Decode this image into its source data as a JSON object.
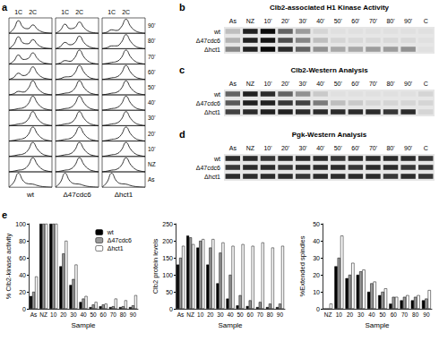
{
  "panel_labels": [
    "a",
    "b",
    "c",
    "d",
    "e"
  ],
  "facs": {
    "peak_labels": [
      "1C",
      "2C"
    ],
    "rows": [
      "90'",
      "80'",
      "70'",
      "60'",
      "50'",
      "40'",
      "30'",
      "20'",
      "10'",
      "NZ",
      "As"
    ],
    "ylim": [
      0,
      1.1
    ],
    "tick_labels": false,
    "columns": [
      {
        "name": "wt",
        "histograms": [
          [
            0,
            0.32,
            0.9,
            0.42,
            0.33,
            0.6,
            0.28,
            0.1,
            0.03,
            0
          ],
          [
            0,
            0.3,
            0.85,
            0.4,
            0.35,
            0.65,
            0.3,
            0.1,
            0.03,
            0
          ],
          [
            0,
            0.22,
            0.65,
            0.33,
            0.4,
            0.8,
            0.38,
            0.13,
            0.04,
            0
          ],
          [
            0,
            0.15,
            0.45,
            0.28,
            0.42,
            0.9,
            0.42,
            0.15,
            0.05,
            0
          ],
          [
            0,
            0.08,
            0.25,
            0.2,
            0.45,
            1,
            0.48,
            0.17,
            0.05,
            0
          ],
          [
            0,
            0.05,
            0.12,
            0.18,
            0.45,
            1,
            0.5,
            0.18,
            0.06,
            0
          ],
          [
            0,
            0.05,
            0.12,
            0.18,
            0.45,
            1,
            0.5,
            0.18,
            0.06,
            0
          ],
          [
            0,
            0.05,
            0.12,
            0.18,
            0.45,
            1,
            0.5,
            0.18,
            0.06,
            0
          ],
          [
            0,
            0.05,
            0.12,
            0.18,
            0.45,
            1,
            0.5,
            0.18,
            0.06,
            0
          ],
          [
            0,
            0.05,
            0.12,
            0.18,
            0.45,
            1,
            0.5,
            0.18,
            0.06,
            0
          ],
          [
            0,
            0.35,
            1,
            0.45,
            0.25,
            0.22,
            0.12,
            0.05,
            0.02,
            0
          ]
        ]
      },
      {
        "name": "Δ47cdc6",
        "histograms": [
          [
            0,
            0.22,
            0.65,
            0.33,
            0.4,
            0.8,
            0.38,
            0.13,
            0.04,
            0
          ],
          [
            0,
            0.15,
            0.45,
            0.28,
            0.42,
            0.9,
            0.42,
            0.15,
            0.05,
            0
          ],
          [
            0,
            0.08,
            0.25,
            0.2,
            0.45,
            1,
            0.48,
            0.17,
            0.05,
            0
          ],
          [
            0,
            0.06,
            0.18,
            0.2,
            0.45,
            1,
            0.5,
            0.17,
            0.05,
            0
          ],
          [
            0,
            0.05,
            0.12,
            0.18,
            0.45,
            1,
            0.5,
            0.18,
            0.06,
            0
          ],
          [
            0,
            0.05,
            0.12,
            0.18,
            0.45,
            1,
            0.5,
            0.18,
            0.06,
            0
          ],
          [
            0,
            0.05,
            0.12,
            0.18,
            0.45,
            1,
            0.5,
            0.18,
            0.06,
            0
          ],
          [
            0,
            0.05,
            0.12,
            0.18,
            0.45,
            1,
            0.5,
            0.18,
            0.06,
            0
          ],
          [
            0,
            0.05,
            0.12,
            0.18,
            0.45,
            1,
            0.5,
            0.18,
            0.06,
            0
          ],
          [
            0,
            0.05,
            0.12,
            0.18,
            0.45,
            1,
            0.5,
            0.18,
            0.06,
            0
          ],
          [
            0,
            0.35,
            1,
            0.45,
            0.25,
            0.22,
            0.12,
            0.05,
            0.02,
            0
          ]
        ]
      },
      {
        "name": "Δhct1",
        "histograms": [
          [
            0,
            0.08,
            0.25,
            0.2,
            0.45,
            1,
            0.48,
            0.17,
            0.05,
            0
          ],
          [
            0,
            0.07,
            0.2,
            0.2,
            0.45,
            1,
            0.5,
            0.17,
            0.05,
            0
          ],
          [
            0,
            0.05,
            0.12,
            0.18,
            0.45,
            1,
            0.5,
            0.18,
            0.06,
            0
          ],
          [
            0,
            0.05,
            0.12,
            0.18,
            0.45,
            1,
            0.5,
            0.18,
            0.06,
            0
          ],
          [
            0,
            0.05,
            0.12,
            0.18,
            0.45,
            1,
            0.5,
            0.18,
            0.06,
            0
          ],
          [
            0,
            0.05,
            0.12,
            0.18,
            0.45,
            1,
            0.5,
            0.18,
            0.06,
            0
          ],
          [
            0,
            0.05,
            0.12,
            0.18,
            0.45,
            1,
            0.5,
            0.18,
            0.06,
            0
          ],
          [
            0,
            0.05,
            0.12,
            0.18,
            0.45,
            1,
            0.5,
            0.18,
            0.06,
            0
          ],
          [
            0,
            0.05,
            0.12,
            0.18,
            0.45,
            1,
            0.5,
            0.18,
            0.06,
            0
          ],
          [
            0,
            0.05,
            0.12,
            0.18,
            0.45,
            1,
            0.5,
            0.18,
            0.06,
            0
          ],
          [
            0,
            0.35,
            1,
            0.45,
            0.25,
            0.22,
            0.12,
            0.05,
            0.02,
            0
          ]
        ]
      }
    ]
  },
  "blots": [
    {
      "title": "Clb2-associated H1 Kinase Activity",
      "lanes": [
        "As",
        "NZ",
        "10'",
        "20'",
        "30'",
        "40'",
        "50'",
        "60'",
        "70'",
        "80'",
        "90'",
        "C"
      ],
      "rows": [
        "wt",
        "Δ47cdc6",
        "Δhct1"
      ],
      "intensities": [
        [
          0.2,
          0.9,
          1,
          0.6,
          0.35,
          0.1,
          0.05,
          0.05,
          0.05,
          0.05,
          0.05,
          0.05
        ],
        [
          0.25,
          0.9,
          0.95,
          0.7,
          0.45,
          0.2,
          0.1,
          0.08,
          0.08,
          0.08,
          0.08,
          0.05
        ],
        [
          0.45,
          0.9,
          1,
          0.85,
          0.6,
          0.4,
          0.3,
          0.3,
          0.35,
          0.35,
          0.4,
          0.05
        ]
      ]
    },
    {
      "title": "Clb2-Western Analysis",
      "lanes": [
        "As",
        "NZ",
        "10'",
        "20'",
        "30'",
        "40'",
        "50'",
        "60'",
        "70'",
        "80'",
        "90'",
        "C"
      ],
      "rows": [
        "wt",
        "Δ47cdc6",
        "Δhct1"
      ],
      "intensities": [
        [
          0.6,
          0.9,
          0.85,
          0.6,
          0.4,
          0.15,
          0.05,
          0.05,
          0.05,
          0.05,
          0.05,
          0.1
        ],
        [
          0.65,
          0.9,
          0.9,
          0.8,
          0.75,
          0.5,
          0.2,
          0.15,
          0.1,
          0.1,
          0.1,
          0.1
        ],
        [
          0.75,
          0.85,
          0.9,
          0.9,
          0.85,
          0.85,
          0.85,
          0.85,
          0.85,
          0.8,
          0.85,
          0.1
        ]
      ]
    },
    {
      "title": "Pgk-Western Analysis",
      "lanes": [
        "As",
        "NZ",
        "10'",
        "20'",
        "30'",
        "40'",
        "50'",
        "60'",
        "70'",
        "80'",
        "90'",
        "C"
      ],
      "rows": [
        "wt",
        "Δ47cdc6",
        "Δhct1"
      ],
      "intensities": [
        [
          0.85,
          0.85,
          0.8,
          0.85,
          0.85,
          0.85,
          0.8,
          0.85,
          0.85,
          0.85,
          0.85,
          0.8
        ],
        [
          0.8,
          0.85,
          0.85,
          0.8,
          0.85,
          0.85,
          0.85,
          0.8,
          0.85,
          0.85,
          0.8,
          0.8
        ],
        [
          0.85,
          0.85,
          0.85,
          0.85,
          0.8,
          0.85,
          0.85,
          0.85,
          0.85,
          0.8,
          0.85,
          0.8
        ]
      ]
    }
  ],
  "chart_data": [
    {
      "type": "bar",
      "x_label": "Sample",
      "y_label": "% Clb2-kinase activity",
      "categories": [
        "As",
        "NZ",
        "10",
        "20",
        "30",
        "40",
        "50",
        "60",
        "70",
        "80",
        "90"
      ],
      "series": [
        {
          "name": "wt",
          "color": "#000000",
          "values": [
            15,
            100,
            100,
            50,
            28,
            8,
            2,
            3,
            2,
            2,
            2
          ]
        },
        {
          "name": "Δ47cdc6",
          "color": "#999999",
          "values": [
            20,
            100,
            100,
            65,
            35,
            12,
            5,
            5,
            3,
            3,
            4
          ]
        },
        {
          "name": "Δhct1",
          "color": "#ffffff",
          "values": [
            38,
            100,
            100,
            80,
            52,
            15,
            8,
            6,
            12,
            10,
            16
          ]
        }
      ],
      "ylim": [
        0,
        100
      ],
      "yticks": [
        0,
        20,
        40,
        60,
        80,
        100
      ],
      "grid": false,
      "legend": "upper right"
    },
    {
      "type": "bar",
      "x_label": "Sample",
      "y_label": "Clb2 protein levels",
      "categories": [
        "As",
        "NZ",
        "10",
        "20",
        "30",
        "40",
        "50",
        "60",
        "70",
        "80",
        "90"
      ],
      "series": [
        {
          "name": "wt",
          "color": "#000000",
          "values": [
            130,
            215,
            180,
            130,
            75,
            30,
            10,
            8,
            5,
            5,
            5
          ]
        },
        {
          "name": "Δ47cdc6",
          "color": "#999999",
          "values": [
            150,
            210,
            200,
            180,
            165,
            100,
            40,
            25,
            20,
            15,
            15
          ]
        },
        {
          "name": "Δhct1",
          "color": "#ffffff",
          "values": [
            185,
            190,
            205,
            205,
            195,
            185,
            190,
            185,
            195,
            180,
            185
          ]
        }
      ],
      "ylim": [
        0,
        250
      ],
      "yticks": [
        0,
        50,
        100,
        150,
        200,
        250
      ],
      "grid": false
    },
    {
      "type": "bar",
      "x_label": "Sample",
      "y_label": "%Extended spindles",
      "categories": [
        "NZ",
        "10",
        "20",
        "30",
        "40",
        "50",
        "60",
        "70",
        "80",
        "90"
      ],
      "series": [
        {
          "name": "wt",
          "color": "#000000",
          "values": [
            0,
            25,
            18,
            20,
            10,
            8,
            3,
            5,
            5,
            5
          ]
        },
        {
          "name": "Δ47cdc6",
          "color": "#999999",
          "values": [
            0,
            30,
            20,
            22,
            15,
            10,
            7,
            7,
            7,
            6
          ]
        },
        {
          "name": "Δhct1",
          "color": "#ffffff",
          "values": [
            3,
            43,
            27,
            23,
            16,
            12,
            7,
            8,
            8,
            11
          ]
        }
      ],
      "ylim": [
        0,
        50
      ],
      "yticks": [
        0,
        10,
        20,
        30,
        40,
        50
      ],
      "grid": false
    }
  ]
}
